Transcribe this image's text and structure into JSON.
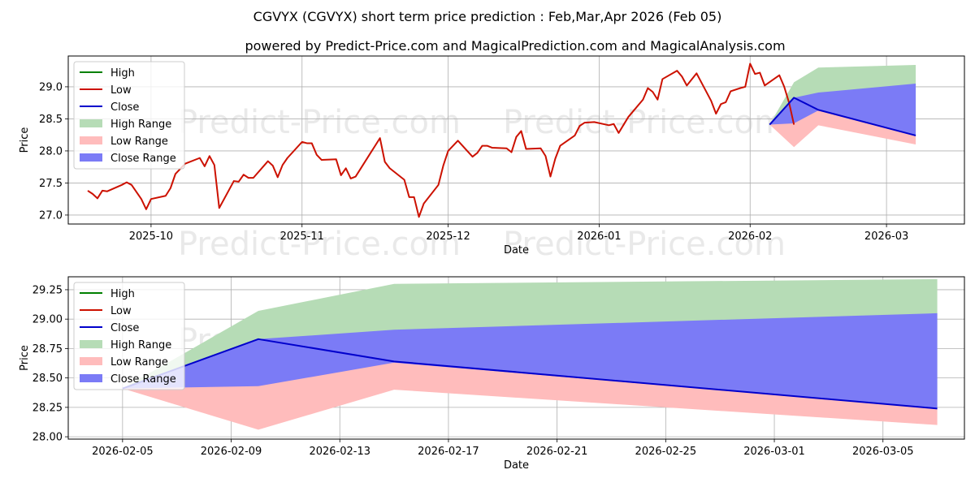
{
  "title": "CGVYX (CGVYX) short term price prediction : Feb,Mar,Apr 2026 (Feb 05)",
  "subtitle": "powered by Predict-Price.com and MagicalPrediction.com and MagicalAnalysis.com",
  "watermark": "Predict-Price.com",
  "colors": {
    "high": "#008000",
    "low": "#cc1100",
    "close": "#0000cc",
    "high_range": "#b6dcb6",
    "low_range": "#ffbcbc",
    "close_range": "#7b7bf6",
    "grid": "#b0b0b0"
  },
  "chart_data": [
    {
      "type": "line",
      "name": "overview",
      "xlabel": "Date",
      "ylabel": "Price",
      "xlim": [
        "2025-09-14",
        "2026-03-17"
      ],
      "ylim": [
        26.86,
        29.48
      ],
      "x_ticks": [
        "2025-10-01",
        "2025-11-01",
        "2025-12-01",
        "2026-01-01",
        "2026-02-01",
        "2026-03-01"
      ],
      "x_tick_labels": [
        "2025-10",
        "2025-11",
        "2025-12",
        "2026-01",
        "2026-02",
        "2026-03"
      ],
      "y_ticks": [
        27.0,
        27.5,
        28.0,
        28.5,
        29.0
      ],
      "y_tick_labels": [
        "27.0",
        "27.5",
        "28.0",
        "28.5",
        "29.0"
      ],
      "grid": true,
      "legend": {
        "position": "top-left",
        "entries": [
          "High",
          "Low",
          "Close",
          "High Range",
          "Low Range",
          "Close Range"
        ]
      },
      "history": {
        "name": "Low",
        "points": [
          [
            "2025-09-18",
            27.38
          ],
          [
            "2025-09-19",
            27.33
          ],
          [
            "2025-09-20",
            27.26
          ],
          [
            "2025-09-21",
            27.38
          ],
          [
            "2025-09-22",
            27.37
          ],
          [
            "2025-09-25",
            27.47
          ],
          [
            "2025-09-26",
            27.51
          ],
          [
            "2025-09-27",
            27.47
          ],
          [
            "2025-09-29",
            27.25
          ],
          [
            "2025-09-30",
            27.09
          ],
          [
            "2025-10-01",
            27.25
          ],
          [
            "2025-10-04",
            27.3
          ],
          [
            "2025-10-05",
            27.42
          ],
          [
            "2025-10-06",
            27.64
          ],
          [
            "2025-10-08",
            27.8
          ],
          [
            "2025-10-11",
            27.89
          ],
          [
            "2025-10-12",
            27.76
          ],
          [
            "2025-10-13",
            27.92
          ],
          [
            "2025-10-14",
            27.78
          ],
          [
            "2025-10-15",
            27.11
          ],
          [
            "2025-10-18",
            27.53
          ],
          [
            "2025-10-19",
            27.52
          ],
          [
            "2025-10-20",
            27.63
          ],
          [
            "2025-10-21",
            27.58
          ],
          [
            "2025-10-22",
            27.58
          ],
          [
            "2025-10-25",
            27.84
          ],
          [
            "2025-10-26",
            27.77
          ],
          [
            "2025-10-27",
            27.59
          ],
          [
            "2025-10-28",
            27.78
          ],
          [
            "2025-10-29",
            27.89
          ],
          [
            "2025-11-01",
            28.14
          ],
          [
            "2025-11-02",
            28.12
          ],
          [
            "2025-11-03",
            28.12
          ],
          [
            "2025-11-04",
            27.94
          ],
          [
            "2025-11-05",
            27.86
          ],
          [
            "2025-11-08",
            27.87
          ],
          [
            "2025-11-09",
            27.62
          ],
          [
            "2025-11-10",
            27.73
          ],
          [
            "2025-11-11",
            27.57
          ],
          [
            "2025-11-12",
            27.6
          ],
          [
            "2025-11-15",
            27.96
          ],
          [
            "2025-11-16",
            28.08
          ],
          [
            "2025-11-17",
            28.2
          ],
          [
            "2025-11-18",
            27.83
          ],
          [
            "2025-11-19",
            27.73
          ],
          [
            "2025-11-22",
            27.55
          ],
          [
            "2025-11-23",
            27.28
          ],
          [
            "2025-11-24",
            27.28
          ],
          [
            "2025-11-25",
            26.97
          ],
          [
            "2025-11-26",
            27.18
          ],
          [
            "2025-11-29",
            27.47
          ],
          [
            "2025-11-30",
            27.77
          ],
          [
            "2025-12-01",
            28.0
          ],
          [
            "2025-12-03",
            28.16
          ],
          [
            "2025-12-06",
            27.91
          ],
          [
            "2025-12-07",
            27.97
          ],
          [
            "2025-12-08",
            28.08
          ],
          [
            "2025-12-09",
            28.08
          ],
          [
            "2025-12-10",
            28.05
          ],
          [
            "2025-12-13",
            28.04
          ],
          [
            "2025-12-14",
            27.98
          ],
          [
            "2025-12-15",
            28.22
          ],
          [
            "2025-12-16",
            28.31
          ],
          [
            "2025-12-17",
            28.03
          ],
          [
            "2025-12-20",
            28.04
          ],
          [
            "2025-12-21",
            27.92
          ],
          [
            "2025-12-22",
            27.6
          ],
          [
            "2025-12-23",
            27.88
          ],
          [
            "2025-12-24",
            28.08
          ],
          [
            "2025-12-27",
            28.24
          ],
          [
            "2025-12-28",
            28.39
          ],
          [
            "2025-12-29",
            28.44
          ],
          [
            "2025-12-31",
            28.45
          ],
          [
            "2026-01-03",
            28.4
          ],
          [
            "2026-01-04",
            28.42
          ],
          [
            "2026-01-05",
            28.28
          ],
          [
            "2026-01-07",
            28.53
          ],
          [
            "2026-01-10",
            28.8
          ],
          [
            "2026-01-11",
            28.98
          ],
          [
            "2026-01-12",
            28.92
          ],
          [
            "2026-01-13",
            28.8
          ],
          [
            "2026-01-14",
            29.12
          ],
          [
            "2026-01-17",
            29.25
          ],
          [
            "2026-01-18",
            29.16
          ],
          [
            "2026-01-19",
            29.02
          ],
          [
            "2026-01-21",
            29.21
          ],
          [
            "2026-01-24",
            28.78
          ],
          [
            "2026-01-25",
            28.58
          ],
          [
            "2026-01-26",
            28.73
          ],
          [
            "2026-01-27",
            28.76
          ],
          [
            "2026-01-28",
            28.93
          ],
          [
            "2026-01-30",
            28.98
          ],
          [
            "2026-01-31",
            29.0
          ],
          [
            "2026-02-01",
            29.36
          ],
          [
            "2026-02-02",
            29.2
          ],
          [
            "2026-02-03",
            29.22
          ],
          [
            "2026-02-04",
            29.02
          ],
          [
            "2026-02-07",
            29.18
          ],
          [
            "2026-02-08",
            29.0
          ],
          [
            "2026-02-09",
            28.75
          ],
          [
            "2026-02-10",
            28.41
          ]
        ]
      },
      "forecast": {
        "x": [
          "2026-02-05",
          "2026-02-10",
          "2026-02-15",
          "2026-03-07"
        ],
        "high_range": [
          [
            28.41,
            28.41
          ],
          [
            28.43,
            29.07
          ],
          [
            28.63,
            29.3
          ],
          [
            28.24,
            29.34
          ]
        ],
        "low_range": [
          [
            28.41,
            28.41
          ],
          [
            28.06,
            28.44
          ],
          [
            28.4,
            28.64
          ],
          [
            28.1,
            28.24
          ]
        ],
        "close_range": [
          [
            28.41,
            28.41
          ],
          [
            28.43,
            28.83
          ],
          [
            28.63,
            28.91
          ],
          [
            28.24,
            29.05
          ]
        ],
        "close": [
          28.41,
          28.83,
          28.64,
          28.24
        ]
      }
    },
    {
      "type": "line",
      "name": "forecast-zoom",
      "xlabel": "Date",
      "ylabel": "Price",
      "xlim": [
        "2026-02-03",
        "2026-03-08"
      ],
      "ylim": [
        27.98,
        29.36
      ],
      "x_ticks": [
        "2026-02-05",
        "2026-02-09",
        "2026-02-13",
        "2026-02-17",
        "2026-02-21",
        "2026-02-25",
        "2026-03-01",
        "2026-03-05"
      ],
      "x_tick_labels": [
        "2026-02-05",
        "2026-02-09",
        "2026-02-13",
        "2026-02-17",
        "2026-02-21",
        "2026-02-25",
        "2026-03-01",
        "2026-03-05"
      ],
      "y_ticks": [
        28.0,
        28.25,
        28.5,
        28.75,
        29.0,
        29.25
      ],
      "y_tick_labels": [
        "28.00",
        "28.25",
        "28.50",
        "28.75",
        "29.00",
        "29.25"
      ],
      "grid": true,
      "legend": {
        "position": "top-left",
        "entries": [
          "High",
          "Low",
          "Close",
          "High Range",
          "Low Range",
          "Close Range"
        ]
      },
      "forecast": {
        "x": [
          "2026-02-05",
          "2026-02-10",
          "2026-02-15",
          "2026-03-07"
        ],
        "high_range": [
          [
            28.41,
            28.41
          ],
          [
            28.43,
            29.07
          ],
          [
            28.63,
            29.3
          ],
          [
            28.24,
            29.34
          ]
        ],
        "low_range": [
          [
            28.41,
            28.41
          ],
          [
            28.06,
            28.44
          ],
          [
            28.4,
            28.64
          ],
          [
            28.1,
            28.24
          ]
        ],
        "close_range": [
          [
            28.41,
            28.41
          ],
          [
            28.43,
            28.83
          ],
          [
            28.63,
            28.91
          ],
          [
            28.24,
            29.05
          ]
        ],
        "close": [
          28.41,
          28.83,
          28.64,
          28.24
        ]
      }
    }
  ]
}
